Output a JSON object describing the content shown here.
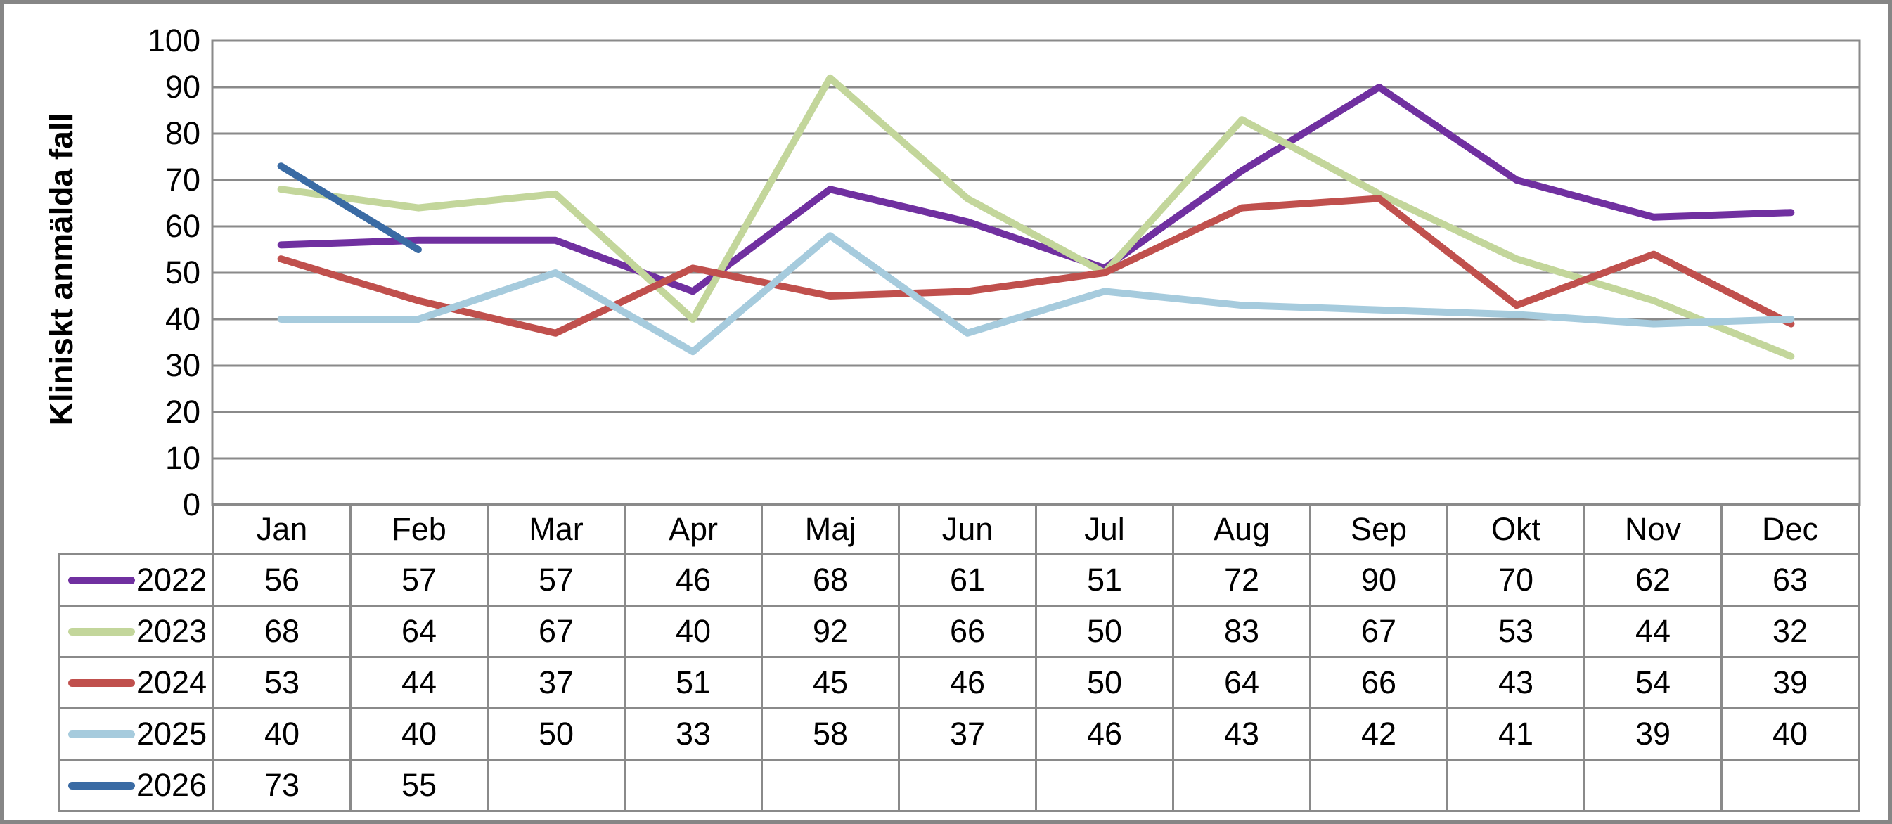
{
  "chart_data": {
    "type": "line",
    "title": "",
    "ylabel": "Kliniskt anmälda fall",
    "xlabel": "",
    "ylim": [
      0,
      100
    ],
    "ytick_step": 10,
    "yticks": [
      0,
      10,
      20,
      30,
      40,
      50,
      60,
      70,
      80,
      90,
      100
    ],
    "grid": true,
    "legend_position": "table-left-column",
    "categories": [
      "Jan",
      "Feb",
      "Mar",
      "Apr",
      "Maj",
      "Jun",
      "Jul",
      "Aug",
      "Sep",
      "Okt",
      "Nov",
      "Dec"
    ],
    "series": [
      {
        "name": "2022",
        "color": "#7030A0",
        "values": [
          56,
          57,
          57,
          46,
          68,
          61,
          51,
          72,
          90,
          70,
          62,
          63
        ]
      },
      {
        "name": "2023",
        "color": "#C3D69B",
        "values": [
          68,
          64,
          67,
          40,
          92,
          66,
          50,
          83,
          67,
          53,
          44,
          32
        ]
      },
      {
        "name": "2024",
        "color": "#C0504D",
        "values": [
          53,
          44,
          37,
          51,
          45,
          46,
          50,
          64,
          66,
          43,
          54,
          39
        ]
      },
      {
        "name": "2025",
        "color": "#A6CBDD",
        "values": [
          40,
          40,
          50,
          33,
          58,
          37,
          46,
          43,
          42,
          41,
          39,
          40
        ]
      },
      {
        "name": "2026",
        "color": "#3A6BA4",
        "values": [
          73,
          55,
          null,
          null,
          null,
          null,
          null,
          null,
          null,
          null,
          null,
          null
        ]
      }
    ]
  },
  "ui_colors": {
    "gridline": "#8A8A8A",
    "plot_border": "#8A8A8A",
    "table_border": "#8A8A8A",
    "outer_frame": "#868686",
    "text": "#000000",
    "background": "#FFFFFF"
  }
}
